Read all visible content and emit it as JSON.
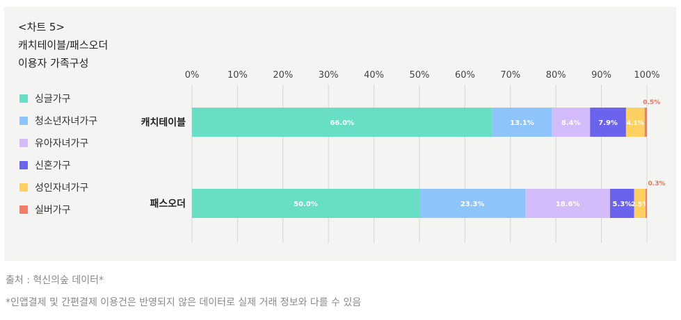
{
  "title": {
    "line1": "<차트 5>",
    "line2": "캐치테이블/패스오더",
    "line3": "이용자 가족구성"
  },
  "legend": [
    {
      "label": "싱글가구",
      "color": "#68dec5"
    },
    {
      "label": "청소년자녀가구",
      "color": "#8ec4fa"
    },
    {
      "label": "유아자녀가구",
      "color": "#d4bbfa"
    },
    {
      "label": "신혼가구",
      "color": "#6a63ee"
    },
    {
      "label": "성인자녀가구",
      "color": "#fdd062"
    },
    {
      "label": "실버가구",
      "color": "#f27c68"
    }
  ],
  "chart_data": {
    "type": "bar",
    "orientation": "horizontal",
    "stacked": true,
    "categories": [
      "캐치테이블",
      "패스오더"
    ],
    "series": [
      {
        "name": "싱글가구",
        "values": [
          66.0,
          50.0
        ],
        "labels": [
          "66.0%",
          "50.0%"
        ]
      },
      {
        "name": "청소년자녀가구",
        "values": [
          13.1,
          23.3
        ],
        "labels": [
          "13.1%",
          "23.3%"
        ]
      },
      {
        "name": "유아자녀가구",
        "values": [
          8.4,
          18.6
        ],
        "labels": [
          "8.4%",
          "18.6%"
        ]
      },
      {
        "name": "신혼가구",
        "values": [
          7.9,
          5.3
        ],
        "labels": [
          "7.9%",
          "5.3%"
        ]
      },
      {
        "name": "성인자녀가구",
        "values": [
          4.1,
          2.5
        ],
        "labels": [
          "4.1%",
          "2.5%"
        ]
      },
      {
        "name": "실버가구",
        "values": [
          0.5,
          0.3
        ],
        "labels": [
          "0.5%",
          "0.3%"
        ]
      }
    ],
    "xticks": [
      "0%",
      "10%",
      "20%",
      "30%",
      "40%",
      "50%",
      "60%",
      "70%",
      "80%",
      "90%",
      "100%"
    ],
    "xlim": [
      0,
      100
    ],
    "grid": true,
    "legend_position": "left"
  },
  "footer": {
    "source": "출처 : 혁신의숲 데이터*",
    "note": "*인앱결제 및 간편결제 이용건은 반영되지 않은 데이터로 실제 거래 정보와 다를 수 있음"
  }
}
